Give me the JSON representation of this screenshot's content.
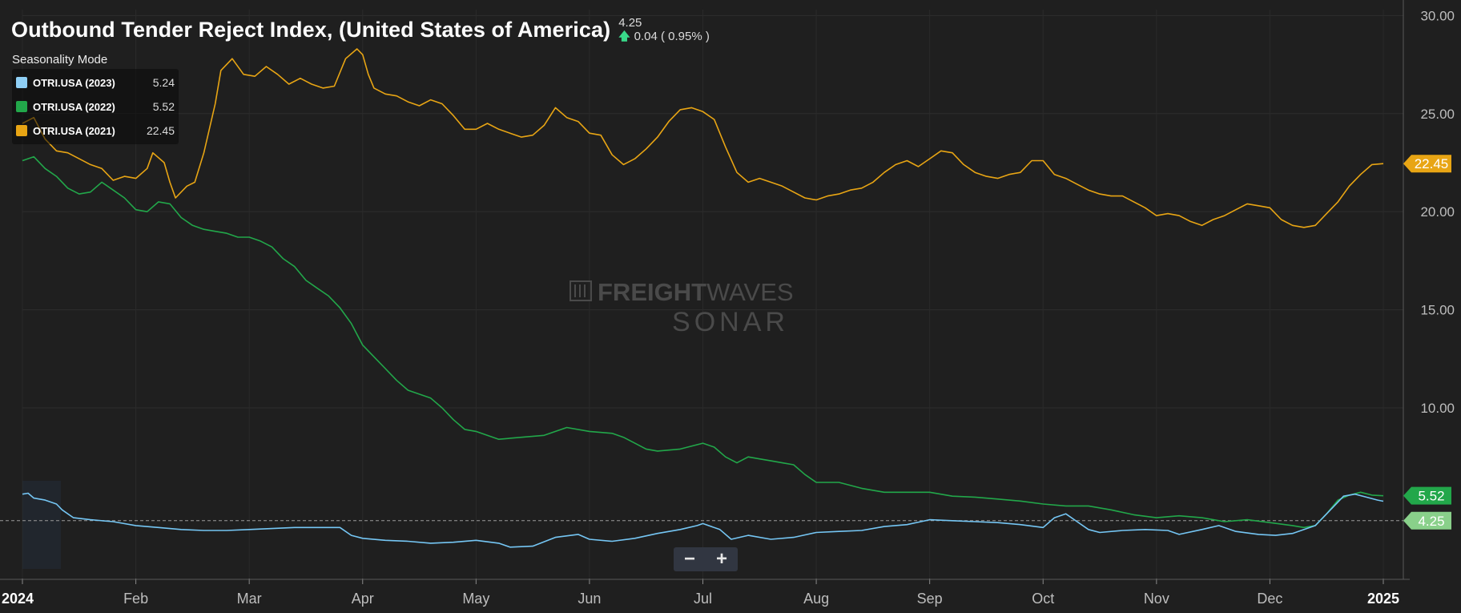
{
  "header": {
    "title": "Outbound Tender Reject Index, (United States of America)",
    "current_value": "4.25",
    "change_text": "0.04 ( 0.95% )",
    "mode_label": "Seasonality Mode"
  },
  "watermark": {
    "line1_bold": "FREIGHT",
    "line1_light": "WAVES",
    "line2": "SONAR"
  },
  "zoom": {
    "minus": "−",
    "plus": "+"
  },
  "chart_data": {
    "type": "line",
    "x_axis": {
      "labels": [
        "2024",
        "Feb",
        "Mar",
        "Apr",
        "May",
        "Jun",
        "Jul",
        "Aug",
        "Sep",
        "Oct",
        "Nov",
        "Dec",
        "2025"
      ],
      "range": [
        0,
        12
      ]
    },
    "y_axis": {
      "ticks": [
        "30.00",
        "25.00",
        "20.00",
        "15.00",
        "10.00"
      ],
      "tick_values": [
        30,
        25,
        20,
        15,
        10
      ],
      "range": [
        1.3,
        30.3
      ],
      "position": "right"
    },
    "grid": true,
    "legend_position": "top-left",
    "reference_line": {
      "value": 4.25,
      "style": "dashed"
    },
    "series": [
      {
        "name": "OTRI.USA (2023)",
        "color": "#75c6f4",
        "last_label": "5.24",
        "badge": "4.25",
        "badge_color": "#89d08a",
        "points": [
          [
            0,
            5.6
          ],
          [
            0.05,
            5.65
          ],
          [
            0.1,
            5.4
          ],
          [
            0.2,
            5.3
          ],
          [
            0.3,
            5.1
          ],
          [
            0.35,
            4.8
          ],
          [
            0.45,
            4.4
          ],
          [
            0.6,
            4.3
          ],
          [
            0.8,
            4.2
          ],
          [
            1.0,
            4.0
          ],
          [
            1.2,
            3.9
          ],
          [
            1.4,
            3.8
          ],
          [
            1.6,
            3.75
          ],
          [
            1.8,
            3.75
          ],
          [
            2.0,
            3.8
          ],
          [
            2.2,
            3.85
          ],
          [
            2.4,
            3.9
          ],
          [
            2.6,
            3.9
          ],
          [
            2.8,
            3.9
          ],
          [
            2.9,
            3.5
          ],
          [
            3.0,
            3.35
          ],
          [
            3.2,
            3.25
          ],
          [
            3.4,
            3.2
          ],
          [
            3.6,
            3.1
          ],
          [
            3.8,
            3.15
          ],
          [
            4.0,
            3.25
          ],
          [
            4.2,
            3.1
          ],
          [
            4.3,
            2.9
          ],
          [
            4.5,
            2.95
          ],
          [
            4.7,
            3.4
          ],
          [
            4.9,
            3.55
          ],
          [
            5.0,
            3.3
          ],
          [
            5.2,
            3.2
          ],
          [
            5.4,
            3.35
          ],
          [
            5.6,
            3.6
          ],
          [
            5.8,
            3.8
          ],
          [
            5.95,
            4.0
          ],
          [
            6.0,
            4.1
          ],
          [
            6.15,
            3.8
          ],
          [
            6.25,
            3.3
          ],
          [
            6.4,
            3.5
          ],
          [
            6.6,
            3.3
          ],
          [
            6.8,
            3.4
          ],
          [
            7.0,
            3.65
          ],
          [
            7.2,
            3.7
          ],
          [
            7.4,
            3.75
          ],
          [
            7.6,
            3.95
          ],
          [
            7.8,
            4.05
          ],
          [
            8.0,
            4.3
          ],
          [
            8.2,
            4.25
          ],
          [
            8.4,
            4.2
          ],
          [
            8.6,
            4.15
          ],
          [
            8.8,
            4.05
          ],
          [
            9.0,
            3.9
          ],
          [
            9.1,
            4.4
          ],
          [
            9.2,
            4.6
          ],
          [
            9.3,
            4.2
          ],
          [
            9.4,
            3.8
          ],
          [
            9.5,
            3.65
          ],
          [
            9.7,
            3.75
          ],
          [
            9.9,
            3.8
          ],
          [
            10.1,
            3.75
          ],
          [
            10.2,
            3.55
          ],
          [
            10.4,
            3.8
          ],
          [
            10.55,
            4.0
          ],
          [
            10.7,
            3.7
          ],
          [
            10.9,
            3.55
          ],
          [
            11.05,
            3.5
          ],
          [
            11.2,
            3.6
          ],
          [
            11.4,
            4.0
          ],
          [
            11.55,
            4.9
          ],
          [
            11.65,
            5.5
          ],
          [
            11.75,
            5.6
          ],
          [
            11.85,
            5.45
          ],
          [
            11.95,
            5.3
          ],
          [
            12.0,
            5.24
          ]
        ]
      },
      {
        "name": "OTRI.USA (2022)",
        "color": "#22a74a",
        "last_label": "5.52",
        "badge": "5.52",
        "badge_color": "#22a74a",
        "points": [
          [
            0,
            22.6
          ],
          [
            0.1,
            22.8
          ],
          [
            0.2,
            22.2
          ],
          [
            0.3,
            21.8
          ],
          [
            0.4,
            21.2
          ],
          [
            0.5,
            20.9
          ],
          [
            0.6,
            21.0
          ],
          [
            0.7,
            21.5
          ],
          [
            0.8,
            21.1
          ],
          [
            0.9,
            20.7
          ],
          [
            1.0,
            20.1
          ],
          [
            1.1,
            20.0
          ],
          [
            1.2,
            20.5
          ],
          [
            1.3,
            20.4
          ],
          [
            1.4,
            19.7
          ],
          [
            1.5,
            19.3
          ],
          [
            1.6,
            19.1
          ],
          [
            1.7,
            19.0
          ],
          [
            1.8,
            18.9
          ],
          [
            1.9,
            18.7
          ],
          [
            2.0,
            18.7
          ],
          [
            2.1,
            18.5
          ],
          [
            2.2,
            18.2
          ],
          [
            2.3,
            17.6
          ],
          [
            2.4,
            17.2
          ],
          [
            2.5,
            16.5
          ],
          [
            2.6,
            16.1
          ],
          [
            2.7,
            15.7
          ],
          [
            2.8,
            15.1
          ],
          [
            2.9,
            14.3
          ],
          [
            3.0,
            13.2
          ],
          [
            3.1,
            12.6
          ],
          [
            3.2,
            12.0
          ],
          [
            3.3,
            11.4
          ],
          [
            3.4,
            10.9
          ],
          [
            3.5,
            10.7
          ],
          [
            3.6,
            10.5
          ],
          [
            3.7,
            10.0
          ],
          [
            3.8,
            9.4
          ],
          [
            3.9,
            8.9
          ],
          [
            4.0,
            8.8
          ],
          [
            4.2,
            8.4
          ],
          [
            4.4,
            8.5
          ],
          [
            4.6,
            8.6
          ],
          [
            4.8,
            9.0
          ],
          [
            5.0,
            8.8
          ],
          [
            5.2,
            8.7
          ],
          [
            5.3,
            8.5
          ],
          [
            5.4,
            8.2
          ],
          [
            5.5,
            7.9
          ],
          [
            5.6,
            7.8
          ],
          [
            5.8,
            7.9
          ],
          [
            6.0,
            8.2
          ],
          [
            6.1,
            8.0
          ],
          [
            6.2,
            7.5
          ],
          [
            6.3,
            7.2
          ],
          [
            6.4,
            7.5
          ],
          [
            6.5,
            7.4
          ],
          [
            6.6,
            7.3
          ],
          [
            6.7,
            7.2
          ],
          [
            6.8,
            7.1
          ],
          [
            6.9,
            6.6
          ],
          [
            7.0,
            6.2
          ],
          [
            7.2,
            6.2
          ],
          [
            7.4,
            5.9
          ],
          [
            7.6,
            5.7
          ],
          [
            7.8,
            5.7
          ],
          [
            8.0,
            5.7
          ],
          [
            8.2,
            5.5
          ],
          [
            8.4,
            5.45
          ],
          [
            8.6,
            5.35
          ],
          [
            8.8,
            5.25
          ],
          [
            9.0,
            5.1
          ],
          [
            9.2,
            5.0
          ],
          [
            9.4,
            5.0
          ],
          [
            9.6,
            4.8
          ],
          [
            9.8,
            4.55
          ],
          [
            10.0,
            4.4
          ],
          [
            10.2,
            4.5
          ],
          [
            10.4,
            4.4
          ],
          [
            10.6,
            4.2
          ],
          [
            10.8,
            4.3
          ],
          [
            11.0,
            4.15
          ],
          [
            11.2,
            4.0
          ],
          [
            11.3,
            3.9
          ],
          [
            11.4,
            4.0
          ],
          [
            11.5,
            4.6
          ],
          [
            11.6,
            5.3
          ],
          [
            11.7,
            5.55
          ],
          [
            11.8,
            5.7
          ],
          [
            11.9,
            5.55
          ],
          [
            12.0,
            5.52
          ]
        ]
      },
      {
        "name": "OTRI.USA (2021)",
        "color": "#e8a514",
        "last_label": "22.45",
        "badge": "22.45",
        "badge_color": "#e8a514",
        "points": [
          [
            0,
            24.5
          ],
          [
            0.1,
            24.8
          ],
          [
            0.2,
            23.7
          ],
          [
            0.3,
            23.1
          ],
          [
            0.4,
            23.0
          ],
          [
            0.5,
            22.7
          ],
          [
            0.6,
            22.4
          ],
          [
            0.7,
            22.2
          ],
          [
            0.8,
            21.6
          ],
          [
            0.9,
            21.8
          ],
          [
            1.0,
            21.7
          ],
          [
            1.1,
            22.2
          ],
          [
            1.15,
            23.0
          ],
          [
            1.25,
            22.5
          ],
          [
            1.3,
            21.5
          ],
          [
            1.35,
            20.7
          ],
          [
            1.45,
            21.3
          ],
          [
            1.52,
            21.5
          ],
          [
            1.6,
            23.0
          ],
          [
            1.7,
            25.5
          ],
          [
            1.75,
            27.2
          ],
          [
            1.85,
            27.8
          ],
          [
            1.95,
            27.0
          ],
          [
            2.05,
            26.9
          ],
          [
            2.15,
            27.4
          ],
          [
            2.25,
            27.0
          ],
          [
            2.35,
            26.5
          ],
          [
            2.45,
            26.8
          ],
          [
            2.55,
            26.5
          ],
          [
            2.65,
            26.3
          ],
          [
            2.75,
            26.4
          ],
          [
            2.85,
            27.8
          ],
          [
            2.95,
            28.3
          ],
          [
            3.0,
            28.0
          ],
          [
            3.05,
            27.0
          ],
          [
            3.1,
            26.3
          ],
          [
            3.2,
            26.0
          ],
          [
            3.3,
            25.9
          ],
          [
            3.4,
            25.6
          ],
          [
            3.5,
            25.4
          ],
          [
            3.6,
            25.7
          ],
          [
            3.7,
            25.5
          ],
          [
            3.8,
            24.9
          ],
          [
            3.9,
            24.2
          ],
          [
            4.0,
            24.2
          ],
          [
            4.1,
            24.5
          ],
          [
            4.2,
            24.2
          ],
          [
            4.3,
            24.0
          ],
          [
            4.4,
            23.8
          ],
          [
            4.5,
            23.9
          ],
          [
            4.6,
            24.4
          ],
          [
            4.7,
            25.3
          ],
          [
            4.8,
            24.8
          ],
          [
            4.9,
            24.6
          ],
          [
            5.0,
            24.0
          ],
          [
            5.1,
            23.9
          ],
          [
            5.2,
            22.9
          ],
          [
            5.3,
            22.4
          ],
          [
            5.4,
            22.7
          ],
          [
            5.5,
            23.2
          ],
          [
            5.6,
            23.8
          ],
          [
            5.7,
            24.6
          ],
          [
            5.8,
            25.2
          ],
          [
            5.9,
            25.3
          ],
          [
            6.0,
            25.1
          ],
          [
            6.1,
            24.7
          ],
          [
            6.2,
            23.3
          ],
          [
            6.3,
            22.0
          ],
          [
            6.4,
            21.5
          ],
          [
            6.5,
            21.7
          ],
          [
            6.6,
            21.5
          ],
          [
            6.7,
            21.3
          ],
          [
            6.8,
            21.0
          ],
          [
            6.9,
            20.7
          ],
          [
            7.0,
            20.6
          ],
          [
            7.1,
            20.8
          ],
          [
            7.2,
            20.9
          ],
          [
            7.3,
            21.1
          ],
          [
            7.4,
            21.2
          ],
          [
            7.5,
            21.5
          ],
          [
            7.6,
            22.0
          ],
          [
            7.7,
            22.4
          ],
          [
            7.8,
            22.6
          ],
          [
            7.9,
            22.3
          ],
          [
            8.0,
            22.7
          ],
          [
            8.1,
            23.1
          ],
          [
            8.2,
            23.0
          ],
          [
            8.3,
            22.4
          ],
          [
            8.4,
            22.0
          ],
          [
            8.5,
            21.8
          ],
          [
            8.6,
            21.7
          ],
          [
            8.7,
            21.9
          ],
          [
            8.8,
            22.0
          ],
          [
            8.9,
            22.6
          ],
          [
            9.0,
            22.6
          ],
          [
            9.1,
            21.9
          ],
          [
            9.2,
            21.7
          ],
          [
            9.3,
            21.4
          ],
          [
            9.4,
            21.1
          ],
          [
            9.5,
            20.9
          ],
          [
            9.6,
            20.8
          ],
          [
            9.7,
            20.8
          ],
          [
            9.8,
            20.5
          ],
          [
            9.9,
            20.2
          ],
          [
            10.0,
            19.8
          ],
          [
            10.1,
            19.9
          ],
          [
            10.2,
            19.8
          ],
          [
            10.3,
            19.5
          ],
          [
            10.4,
            19.3
          ],
          [
            10.5,
            19.6
          ],
          [
            10.6,
            19.8
          ],
          [
            10.7,
            20.1
          ],
          [
            10.8,
            20.4
          ],
          [
            10.9,
            20.3
          ],
          [
            11.0,
            20.2
          ],
          [
            11.1,
            19.6
          ],
          [
            11.2,
            19.3
          ],
          [
            11.3,
            19.2
          ],
          [
            11.4,
            19.3
          ],
          [
            11.5,
            19.9
          ],
          [
            11.6,
            20.5
          ],
          [
            11.7,
            21.3
          ],
          [
            11.8,
            21.9
          ],
          [
            11.9,
            22.4
          ],
          [
            12.0,
            22.45
          ]
        ]
      }
    ]
  }
}
